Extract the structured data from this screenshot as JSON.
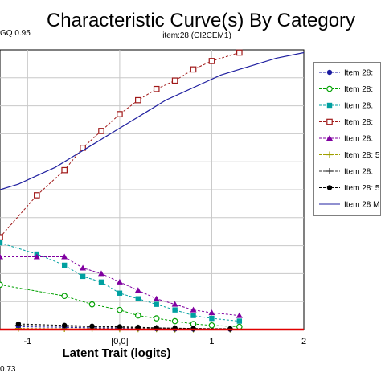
{
  "chart_data": {
    "type": "line",
    "title": "Characteristic Curve(s) By Category",
    "subtitle": "item:28 (CI2CEM1)",
    "corner_top_label": "GQ  0.95",
    "corner_bottom_label": "0.73",
    "xlabel": "Latent Trait (logits)",
    "x_ticks": [
      "-1",
      "[0,0]",
      "1",
      "2"
    ],
    "xlim": [
      -1.3,
      2.0
    ],
    "ylim": [
      0,
      1
    ],
    "grid": true,
    "legend_position": "right",
    "series": [
      {
        "name": "Item 28: ",
        "color": "#1a1aa0",
        "marker": "circle-filled",
        "dash": true,
        "x": [
          -1.1,
          -0.6,
          -0.3,
          0.0,
          0.2,
          0.4,
          0.6,
          0.8,
          1.2
        ],
        "y": [
          0.01,
          0.008,
          0.006,
          0.005,
          0.004,
          0.003,
          0.002,
          0.002,
          0.001
        ]
      },
      {
        "name": "Item 28: ",
        "color": "#00a000",
        "marker": "circle-open",
        "dash": true,
        "x": [
          -1.3,
          -0.6,
          -0.3,
          0.0,
          0.2,
          0.4,
          0.6,
          0.8,
          1.0,
          1.3
        ],
        "y": [
          0.16,
          0.12,
          0.09,
          0.07,
          0.05,
          0.04,
          0.03,
          0.02,
          0.015,
          0.01
        ]
      },
      {
        "name": "Item 28: ",
        "color": "#00a0a0",
        "marker": "square-filled",
        "dash": true,
        "x": [
          -1.3,
          -0.9,
          -0.6,
          -0.4,
          -0.2,
          0.0,
          0.2,
          0.4,
          0.6,
          0.8,
          1.0,
          1.3
        ],
        "y": [
          0.31,
          0.27,
          0.23,
          0.19,
          0.17,
          0.13,
          0.11,
          0.09,
          0.07,
          0.05,
          0.04,
          0.03
        ]
      },
      {
        "name": "Item 28: ",
        "color": "#a01818",
        "marker": "square-open",
        "dash": true,
        "x": [
          -1.3,
          -0.9,
          -0.6,
          -0.4,
          -0.2,
          0.0,
          0.2,
          0.4,
          0.6,
          0.8,
          1.0,
          1.3
        ],
        "y": [
          0.33,
          0.48,
          0.57,
          0.65,
          0.71,
          0.77,
          0.82,
          0.86,
          0.89,
          0.93,
          0.96,
          0.99
        ]
      },
      {
        "name": "Item 28: ",
        "color": "#8000a0",
        "marker": "triangle-filled",
        "dash": true,
        "x": [
          -1.3,
          -0.9,
          -0.6,
          -0.4,
          -0.2,
          0.0,
          0.2,
          0.4,
          0.6,
          0.8,
          1.0,
          1.3
        ],
        "y": [
          0.26,
          0.26,
          0.26,
          0.22,
          0.2,
          0.17,
          0.14,
          0.11,
          0.09,
          0.07,
          0.06,
          0.05
        ]
      },
      {
        "name": "Item 28: 5",
        "color": "#a0a000",
        "marker": "plus",
        "dash": true,
        "x": [
          -1.1,
          -0.6,
          -0.3,
          0.0,
          0.2,
          0.4,
          0.6,
          0.8,
          1.2
        ],
        "y": [
          0.004,
          0.003,
          0.003,
          0.002,
          0.002,
          0.002,
          0.001,
          0.001,
          0.001
        ]
      },
      {
        "name": "Item 28: ",
        "color": "#303030",
        "marker": "plus",
        "dash": true,
        "x": [
          -1.1,
          -0.6,
          -0.3,
          0.0,
          0.2,
          0.4,
          0.6,
          0.8,
          1.2
        ],
        "y": [
          0.015,
          0.012,
          0.01,
          0.008,
          0.006,
          0.005,
          0.004,
          0.003,
          0.002
        ]
      },
      {
        "name": "Item 28: 5",
        "color": "#000000",
        "marker": "circle-filled",
        "dash": true,
        "x": [
          -1.1,
          -0.6,
          -0.3,
          0.0,
          0.2,
          0.4,
          0.6,
          0.8,
          1.2
        ],
        "y": [
          0.02,
          0.015,
          0.012,
          0.01,
          0.008,
          0.006,
          0.005,
          0.004,
          0.003
        ]
      },
      {
        "name": "Item 28 M",
        "color": "#2020a0",
        "marker": "none",
        "dash": false,
        "x": [
          -1.3,
          -1.1,
          -0.9,
          -0.7,
          -0.5,
          -0.3,
          -0.1,
          0.1,
          0.3,
          0.5,
          0.7,
          0.9,
          1.1,
          1.3,
          1.5,
          1.7,
          2.0
        ],
        "y": [
          0.5,
          0.52,
          0.55,
          0.58,
          0.62,
          0.66,
          0.7,
          0.74,
          0.78,
          0.82,
          0.85,
          0.88,
          0.91,
          0.93,
          0.95,
          0.97,
          0.99
        ]
      }
    ],
    "baseline_color": "#e00000"
  }
}
